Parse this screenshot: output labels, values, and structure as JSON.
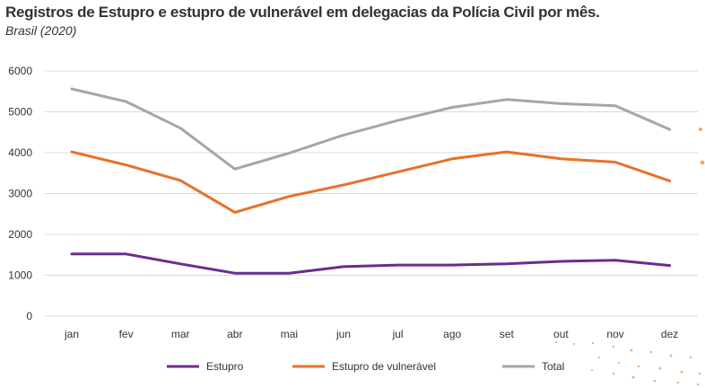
{
  "title": "Registros de Estupro e estupro de vulnerável em delegacias da Polícia Civil por mês.",
  "subtitle": "Brasil (2020)",
  "chart_data": {
    "type": "line",
    "categories": [
      "jan",
      "fev",
      "mar",
      "abr",
      "mai",
      "jun",
      "jul",
      "ago",
      "set",
      "out",
      "nov",
      "dez"
    ],
    "ylim": [
      0,
      6000
    ],
    "yticks": [
      0,
      1000,
      2000,
      3000,
      4000,
      5000,
      6000
    ],
    "ytick_labels": [
      "0",
      "1000",
      "2000",
      "3000",
      "4000",
      "5000",
      "6000"
    ],
    "grid": true,
    "legend_position": "bottom",
    "series": [
      {
        "name": "Estupro",
        "color": "#6b2c8f",
        "values": [
          1520,
          1520,
          1280,
          1050,
          1050,
          1210,
          1250,
          1250,
          1280,
          1340,
          1370,
          1240
        ]
      },
      {
        "name": "Estupro de vulnerável",
        "color": "#e8702a",
        "values": [
          4020,
          3700,
          3320,
          2540,
          2930,
          3210,
          3530,
          3850,
          4020,
          3850,
          3770,
          3310
        ]
      },
      {
        "name": "Total",
        "color": "#a6a6a6",
        "values": [
          5560,
          5250,
          4600,
          3600,
          3990,
          4430,
          4790,
          5110,
          5300,
          5200,
          5150,
          4570
        ]
      }
    ]
  }
}
